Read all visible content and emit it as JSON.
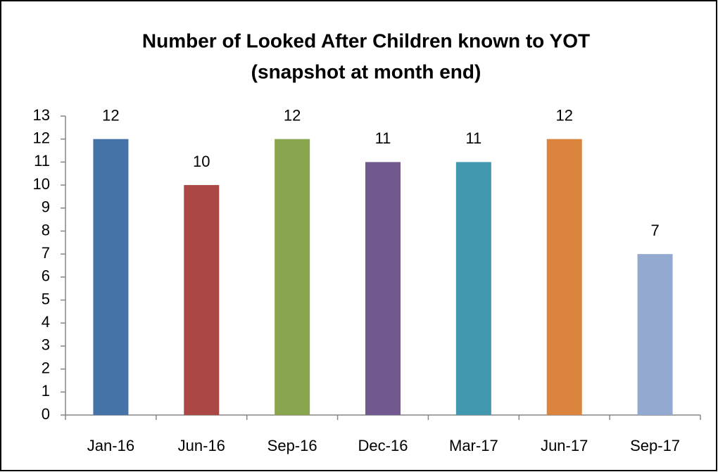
{
  "chart_data": {
    "type": "bar",
    "title": [
      "Number of Looked After Children known to YOT",
      "(snapshot at month end)"
    ],
    "categories": [
      "Jan-16",
      "Jun-16",
      "Sep-16",
      "Dec-16",
      "Mar-17",
      "Jun-17",
      "Sep-17"
    ],
    "values": [
      12,
      10,
      12,
      11,
      11,
      12,
      7
    ],
    "colors": [
      "#4572a7",
      "#aa4643",
      "#89a54e",
      "#71588f",
      "#4198af",
      "#db843d",
      "#93a9cf"
    ],
    "ylim": [
      0,
      13
    ],
    "yticks": [
      0,
      1,
      2,
      3,
      4,
      5,
      6,
      7,
      8,
      9,
      10,
      11,
      12,
      13
    ],
    "grid": false,
    "data_labels": true
  }
}
